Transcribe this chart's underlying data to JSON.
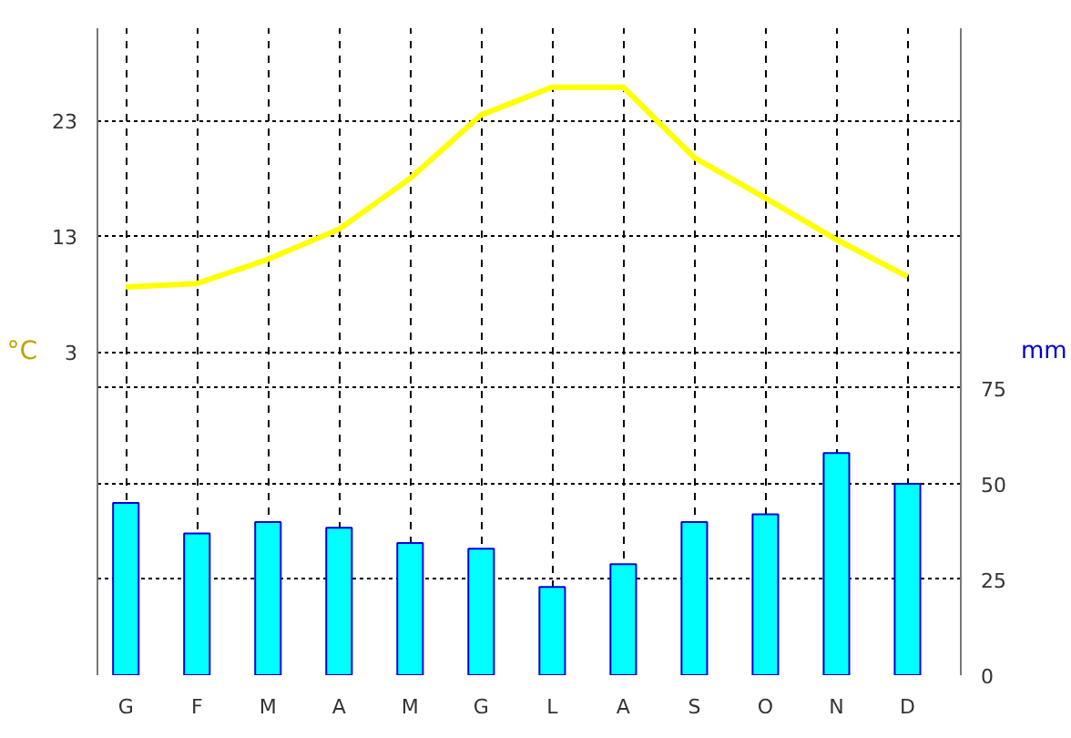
{
  "chart_data": {
    "type": "bar",
    "categories": [
      "G",
      "F",
      "M",
      "A",
      "M",
      "G",
      "L",
      "A",
      "S",
      "O",
      "N",
      "D"
    ],
    "series": [
      {
        "axis": "y2",
        "color": "#00ffff",
        "values": [
          45,
          37,
          40,
          38.5,
          34.5,
          33,
          23,
          29,
          40,
          42,
          58,
          50
        ]
      },
      {
        "type": "line",
        "color": "#ffff00",
        "values": [
          8.6,
          8.9,
          11,
          13.6,
          18,
          23.5,
          25.9,
          25.9,
          19.8,
          16.3,
          12.7,
          9.5
        ]
      }
    ],
    "ylabel": "°C",
    "y2label": "mm",
    "ylim": [
      -25,
      31
    ],
    "yticks": [
      3,
      13,
      23
    ],
    "y2lim": [
      0,
      169
    ],
    "y2ticks": [
      0,
      25,
      50,
      75
    ],
    "grid": true
  }
}
